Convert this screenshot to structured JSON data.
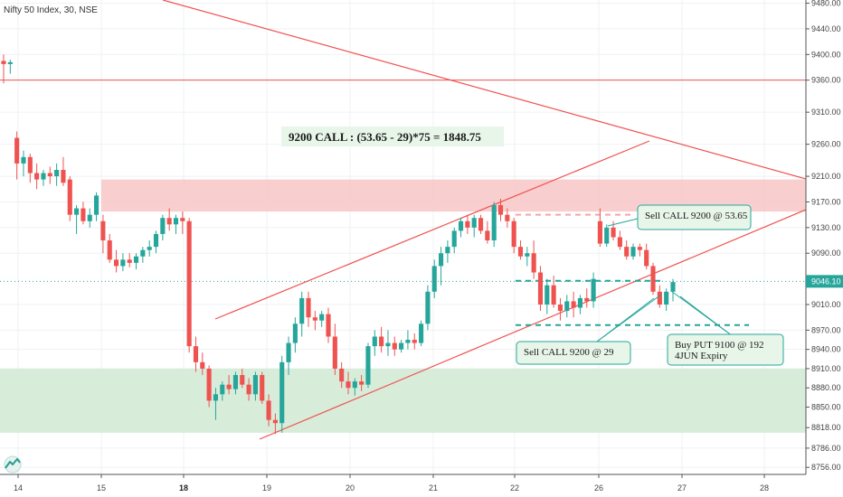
{
  "header": {
    "symbol_label": "Nifty 50 Index, 30, NSE"
  },
  "chart_data": {
    "type": "candlestick",
    "title": "Nifty 50 Index, 30, NSE",
    "ylim": [
      8745,
      9485
    ],
    "y_ticks": [
      "9480.00",
      "9440.00",
      "9400.00",
      "9360.00",
      "9310.00",
      "9260.00",
      "9210.00",
      "9170.00",
      "9130.00",
      "9090.00",
      "9046.10",
      "9010.00",
      "8970.00",
      "8940.00",
      "8910.00",
      "8880.00",
      "8850.00",
      "8818.00",
      "8786.00",
      "8756.00"
    ],
    "x_ticks": [
      {
        "label": "14",
        "bold": false
      },
      {
        "label": "15",
        "bold": false
      },
      {
        "label": "18",
        "bold": true
      },
      {
        "label": "19",
        "bold": false
      },
      {
        "label": "20",
        "bold": false
      },
      {
        "label": "21",
        "bold": false
      },
      {
        "label": "22",
        "bold": false
      },
      {
        "label": "26",
        "bold": false
      },
      {
        "label": "27",
        "bold": false
      },
      {
        "label": "28",
        "bold": false
      }
    ],
    "last_price": "9046.10",
    "colors": {
      "up": "#26a69a",
      "down": "#ef5350",
      "trend": "#ef5350",
      "resistance_zone": "#f7c6c7",
      "support_zone": "#d4ead6",
      "annotation_bg": "#e8f5e9",
      "annotation_border": "#26a69a",
      "dashed_green": "#26a69a",
      "dashed_red": "#f4a6a6",
      "price_tag_bg": "#26a69a"
    },
    "candles": [
      [
        9390,
        9400,
        9355,
        9385
      ],
      [
        9385,
        9392,
        9370,
        9388
      ],
      [
        9270,
        9280,
        9205,
        9230
      ],
      [
        9230,
        9250,
        9210,
        9240
      ],
      [
        9240,
        9245,
        9200,
        9215
      ],
      [
        9215,
        9230,
        9190,
        9205
      ],
      [
        9205,
        9220,
        9195,
        9215
      ],
      [
        9215,
        9225,
        9198,
        9210
      ],
      [
        9210,
        9230,
        9195,
        9220
      ],
      [
        9220,
        9240,
        9195,
        9200
      ],
      [
        9205,
        9210,
        9140,
        9150
      ],
      [
        9150,
        9165,
        9120,
        9160
      ],
      [
        9160,
        9170,
        9135,
        9140
      ],
      [
        9140,
        9160,
        9130,
        9150
      ],
      [
        9150,
        9185,
        9140,
        9180
      ],
      [
        9140,
        9150,
        9090,
        9110
      ],
      [
        9110,
        9120,
        9075,
        9080
      ],
      [
        9080,
        9095,
        9060,
        9070
      ],
      [
        9070,
        9090,
        9062,
        9080
      ],
      [
        9080,
        9090,
        9068,
        9075
      ],
      [
        9075,
        9090,
        9065,
        9085
      ],
      [
        9085,
        9100,
        9075,
        9095
      ],
      [
        9095,
        9110,
        9085,
        9100
      ],
      [
        9100,
        9125,
        9090,
        9120
      ],
      [
        9120,
        9150,
        9110,
        9145
      ],
      [
        9145,
        9160,
        9125,
        9135
      ],
      [
        9135,
        9150,
        9120,
        9145
      ],
      [
        9145,
        9155,
        9120,
        9140
      ],
      [
        9140,
        9145,
        8935,
        8945
      ],
      [
        8945,
        8960,
        8905,
        8920
      ],
      [
        8920,
        8935,
        8900,
        8910
      ],
      [
        8910,
        8915,
        8850,
        8860
      ],
      [
        8860,
        8880,
        8830,
        8870
      ],
      [
        8870,
        8890,
        8860,
        8885
      ],
      [
        8885,
        8900,
        8870,
        8878
      ],
      [
        8878,
        8905,
        8870,
        8900
      ],
      [
        8900,
        8910,
        8880,
        8885
      ],
      [
        8885,
        8895,
        8860,
        8870
      ],
      [
        8870,
        8905,
        8860,
        8900
      ],
      [
        8900,
        8905,
        8855,
        8860
      ],
      [
        8860,
        8870,
        8820,
        8830
      ],
      [
        8830,
        8840,
        8808,
        8825
      ],
      [
        8825,
        8930,
        8810,
        8920
      ],
      [
        8920,
        8960,
        8900,
        8950
      ],
      [
        8950,
        8990,
        8935,
        8980
      ],
      [
        8980,
        9030,
        8960,
        9020
      ],
      [
        9020,
        9030,
        8975,
        8990
      ],
      [
        8990,
        9000,
        8970,
        8985
      ],
      [
        8985,
        9000,
        8975,
        8995
      ],
      [
        8995,
        9005,
        8950,
        8960
      ],
      [
        8960,
        8980,
        8900,
        8910
      ],
      [
        8910,
        8920,
        8880,
        8890
      ],
      [
        8890,
        8905,
        8870,
        8880
      ],
      [
        8880,
        8895,
        8868,
        8890
      ],
      [
        8890,
        8900,
        8875,
        8885
      ],
      [
        8885,
        8950,
        8880,
        8945
      ],
      [
        8945,
        8970,
        8930,
        8960
      ],
      [
        8960,
        8975,
        8935,
        8945
      ],
      [
        8945,
        8970,
        8930,
        8950
      ],
      [
        8950,
        8960,
        8930,
        8940
      ],
      [
        8940,
        8955,
        8935,
        8950
      ],
      [
        8950,
        8970,
        8940,
        8955
      ],
      [
        8955,
        8965,
        8940,
        8950
      ],
      [
        8950,
        8985,
        8945,
        8980
      ],
      [
        8980,
        9040,
        8970,
        9030
      ],
      [
        9030,
        9080,
        9020,
        9070
      ],
      [
        9070,
        9100,
        9040,
        9090
      ],
      [
        9090,
        9110,
        9075,
        9100
      ],
      [
        9100,
        9130,
        9090,
        9125
      ],
      [
        9125,
        9145,
        9115,
        9140
      ],
      [
        9140,
        9150,
        9120,
        9130
      ],
      [
        9130,
        9150,
        9115,
        9145
      ],
      [
        9145,
        9150,
        9120,
        9125
      ],
      [
        9125,
        9140,
        9105,
        9110
      ],
      [
        9110,
        9170,
        9100,
        9165
      ],
      [
        9165,
        9175,
        9140,
        9150
      ],
      [
        9150,
        9160,
        9130,
        9140
      ],
      [
        9140,
        9145,
        9090,
        9100
      ],
      [
        9100,
        9110,
        9080,
        9085
      ],
      [
        9085,
        9100,
        9070,
        9090
      ],
      [
        9090,
        9110,
        9050,
        9060
      ],
      [
        9060,
        9070,
        9000,
        9010
      ],
      [
        9010,
        9050,
        8995,
        9040
      ],
      [
        9040,
        9055,
        9005,
        9010
      ],
      [
        9010,
        9020,
        8985,
        9000
      ],
      [
        9000,
        9025,
        8990,
        9015
      ],
      [
        9015,
        9030,
        8990,
        9005
      ],
      [
        9005,
        9025,
        8995,
        9020
      ],
      [
        9020,
        9035,
        9005,
        9015
      ],
      [
        9015,
        9060,
        9005,
        9050
      ],
      [
        9140,
        9160,
        9100,
        9105
      ],
      [
        9105,
        9135,
        9100,
        9130
      ],
      [
        9130,
        9140,
        9110,
        9115
      ],
      [
        9115,
        9125,
        9095,
        9100
      ],
      [
        9100,
        9110,
        9080,
        9085
      ],
      [
        9085,
        9105,
        9080,
        9100
      ],
      [
        9100,
        9105,
        9085,
        9095
      ],
      [
        9095,
        9105,
        9065,
        9070
      ],
      [
        9070,
        9075,
        9025,
        9030
      ],
      [
        9030,
        9040,
        9005,
        9010
      ],
      [
        9010,
        9035,
        9000,
        9030
      ],
      [
        9030,
        9050,
        9015,
        9045
      ]
    ],
    "levels": {
      "hline_top": 9360,
      "resistance_zone": [
        9155,
        9205
      ],
      "support_zone": [
        8810,
        8910
      ],
      "dashed_red": 9150,
      "dashed_green_mid": 9047,
      "dashed_green_low": 8978
    },
    "annotations": {
      "headline": "9200 CALL :  (53.65 -  29)*75 = 1848.75",
      "sell_call_1": "Sell CALL 9200 @  53.65",
      "sell_call_2": "Sell CALL 9200 @  29",
      "buy_put_line1": "Buy PUT 9100 @  192",
      "buy_put_line2": "4JUN Expiry"
    }
  }
}
